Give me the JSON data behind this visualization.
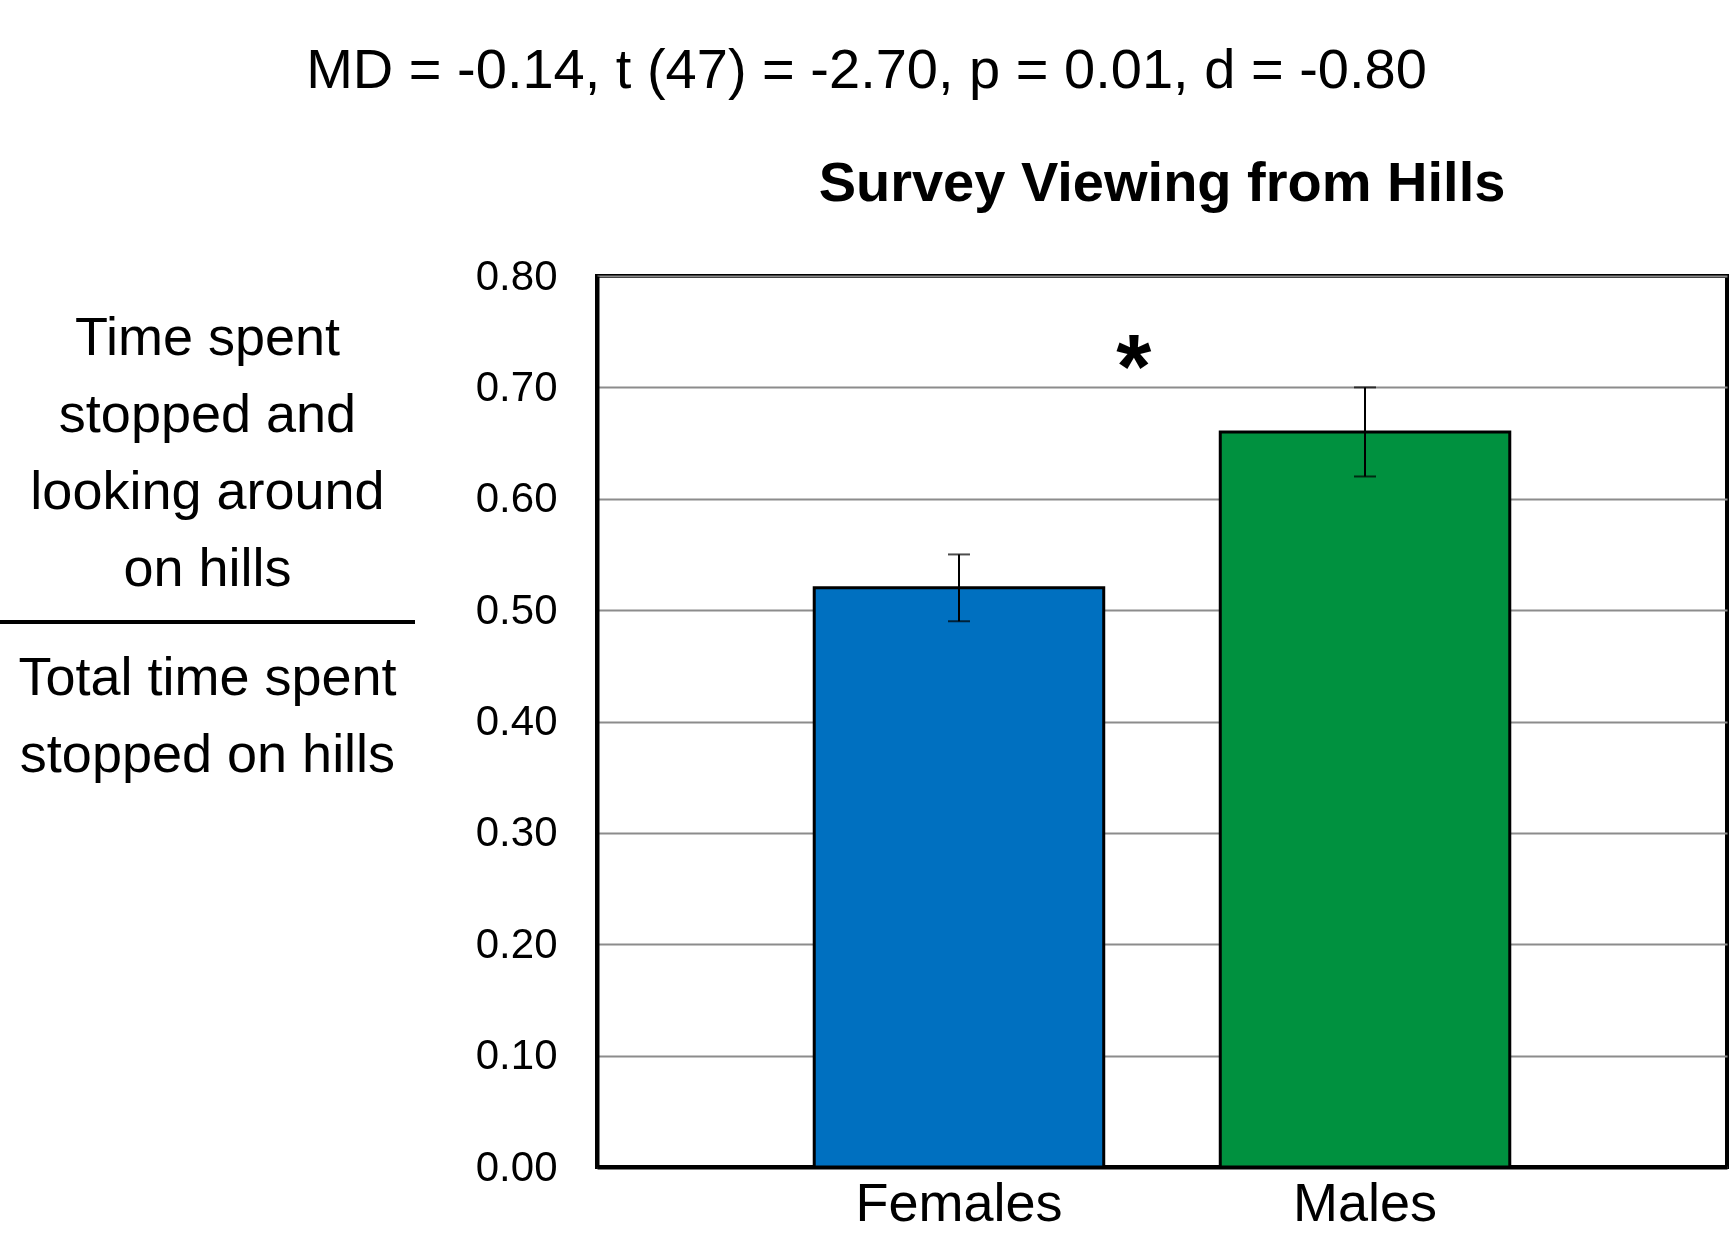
{
  "chart_data": {
    "type": "bar",
    "title": "Survey Viewing from Hills",
    "ylabel": "Time spent stopped and looking around on hills\nTotal time spent stopped on hills",
    "categories": [
      "Females",
      "Males"
    ],
    "values": [
      0.52,
      0.66
    ],
    "colors": [
      "#0070c0",
      "#00913f"
    ],
    "errors": [
      [
        0.49,
        0.55
      ],
      [
        0.62,
        0.7
      ]
    ],
    "ylim": [
      0,
      0.8
    ],
    "yticks": [
      {
        "value": 0,
        "label": "0.00"
      },
      {
        "value": 0.1,
        "label": "0.10"
      },
      {
        "value": 0.2,
        "label": "0.20"
      },
      {
        "value": 0.3,
        "label": "0.30"
      },
      {
        "value": 0.4,
        "label": "0.40"
      },
      {
        "value": 0.5,
        "label": "0.50"
      },
      {
        "value": 0.6,
        "label": "0.60"
      },
      {
        "value": 0.7,
        "label": "0.70"
      },
      {
        "value": 0.8,
        "label": "0.80"
      }
    ],
    "grid": "y",
    "annotations": [
      "MD = -0.14, t (47) = -2.70, p = 0.01, d = -0.80",
      "*"
    ]
  }
}
